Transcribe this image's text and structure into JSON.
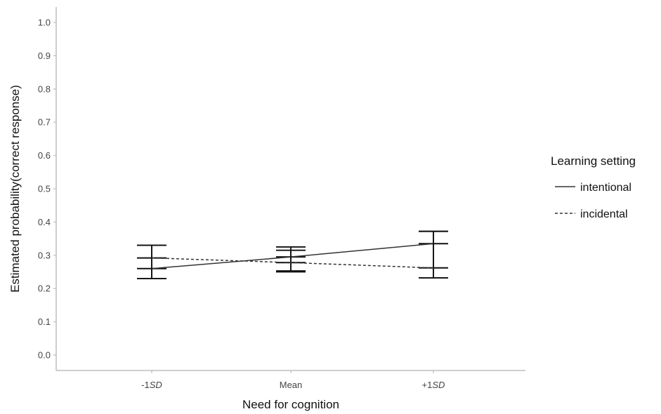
{
  "chart_data": {
    "type": "line",
    "xlabel": "Need for cognition",
    "ylabel": "Estimated probability(correct response)",
    "categories": [
      {
        "prefix": "-1",
        "italic": "SD"
      },
      {
        "prefix": "Mean",
        "italic": ""
      },
      {
        "prefix": "+1",
        "italic": "SD"
      }
    ],
    "ylim": [
      0.0,
      1.0
    ],
    "yticks": [
      "0.0",
      "0.1",
      "0.2",
      "0.3",
      "0.4",
      "0.5",
      "0.6",
      "0.7",
      "0.8",
      "0.9",
      "1.0"
    ],
    "grid": false,
    "legend": {
      "title": "Learning setting",
      "position": "right"
    },
    "series": [
      {
        "name": "intentional",
        "line_style": "solid",
        "values": [
          0.26,
          0.295,
          0.335
        ],
        "ci_lower": [
          0.23,
          0.253,
          0.232
        ],
        "ci_upper": [
          0.33,
          0.325,
          0.372
        ]
      },
      {
        "name": "incidental",
        "line_style": "dashed",
        "values": [
          0.292,
          0.278,
          0.262
        ],
        "ci_lower": [
          0.23,
          0.25,
          0.232
        ],
        "ci_upper": [
          0.33,
          0.315,
          0.372
        ]
      }
    ]
  }
}
